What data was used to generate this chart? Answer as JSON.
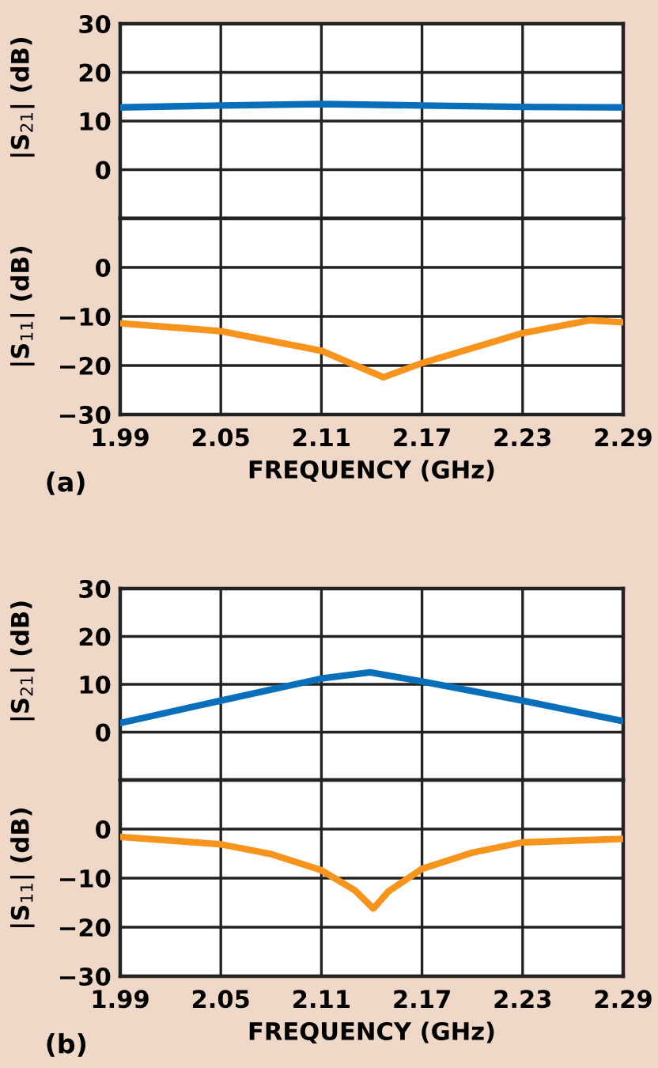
{
  "chart_data": [
    {
      "type": "line",
      "ylabel": "|S$_{21}$| (dB)",
      "x": [
        1.99,
        2.05,
        2.11,
        2.17,
        2.23,
        2.29
      ],
      "series": [
        {
          "color": "#0a6fba",
          "values": [
            12.8,
            13.2,
            13.5,
            13.2,
            12.9,
            12.8
          ]
        }
      ],
      "xlim": [
        1.99,
        2.29
      ],
      "xticks": [
        1.99,
        2.05,
        2.11,
        2.17,
        2.23,
        2.29
      ],
      "ylim": [
        -10,
        30
      ],
      "yticks": [
        0,
        10,
        20,
        30
      ],
      "grid": true,
      "tick_labels": "y"
    },
    {
      "type": "line",
      "ylabel": "|S$_{11}$| (dB)",
      "xlabel": "FREQUENCY (GHz)",
      "annotations": [
        "(a)"
      ],
      "x": [
        1.99,
        2.05,
        2.11,
        2.147,
        2.17,
        2.23,
        2.27,
        2.29
      ],
      "series": [
        {
          "color": "#f7941d",
          "values": [
            -11.4,
            -13,
            -17,
            -22.4,
            -19.5,
            -13.4,
            -10.8,
            -11.2
          ]
        }
      ],
      "xlim": [
        1.99,
        2.29
      ],
      "xticks": [
        1.99,
        2.05,
        2.11,
        2.17,
        2.23,
        2.29
      ],
      "ylim": [
        -30,
        10
      ],
      "yticks": [
        -30,
        -20,
        -10,
        0
      ],
      "grid": true
    },
    {
      "type": "line",
      "ylabel": "|S$_{21}$| (dB)",
      "x": [
        1.99,
        2.05,
        2.11,
        2.139,
        2.17,
        2.23,
        2.29
      ],
      "series": [
        {
          "color": "#0a6fba",
          "values": [
            1.9,
            6.6,
            11.2,
            12.5,
            10.6,
            6.6,
            2.3
          ]
        }
      ],
      "xlim": [
        1.99,
        2.29
      ],
      "xticks": [
        1.99,
        2.05,
        2.11,
        2.17,
        2.23,
        2.29
      ],
      "ylim": [
        -10,
        30
      ],
      "yticks": [
        0,
        10,
        20,
        30
      ],
      "grid": true,
      "tick_labels": "y"
    },
    {
      "type": "line",
      "ylabel": "|S$_{11}$| (dB)",
      "xlabel": "FREQUENCY (GHz)",
      "annotations": [
        "(b)"
      ],
      "x": [
        1.99,
        2.05,
        2.08,
        2.11,
        2.13,
        2.141,
        2.15,
        2.17,
        2.2,
        2.23,
        2.29
      ],
      "series": [
        {
          "color": "#f7941d",
          "values": [
            -1.6,
            -3.1,
            -5.1,
            -8.4,
            -12.5,
            -16.2,
            -12.7,
            -8.1,
            -4.8,
            -2.7,
            -2
          ]
        }
      ],
      "xlim": [
        1.99,
        2.29
      ],
      "xticks": [
        1.99,
        2.05,
        2.11,
        2.17,
        2.23,
        2.29
      ],
      "ylim": [
        -30,
        10
      ],
      "yticks": [
        -30,
        -20,
        -10,
        0
      ],
      "grid": true
    }
  ]
}
